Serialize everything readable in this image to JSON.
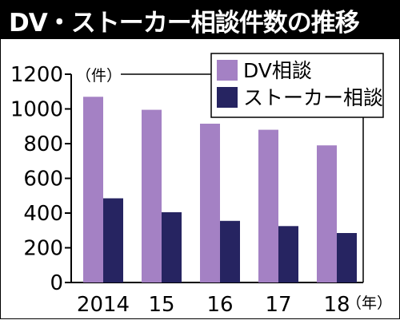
{
  "title": "DV・ストーカー相談件数の推移",
  "chart_data": {
    "type": "bar",
    "title": "DV・ストーカー相談件数の推移",
    "y_unit": "（件）",
    "x_unit": "（年）",
    "categories": [
      "2014",
      "15",
      "16",
      "17",
      "18"
    ],
    "series": [
      {
        "name": "DV相談",
        "color": "#a481c4",
        "values": [
          1070,
          995,
          915,
          880,
          790
        ]
      },
      {
        "name": "ストーカー相談",
        "color": "#262461",
        "values": [
          485,
          405,
          355,
          325,
          285
        ]
      }
    ],
    "ylim": [
      0,
      1200
    ],
    "yticks": [
      0,
      200,
      400,
      600,
      800,
      1000,
      1200
    ],
    "grid": false,
    "legend_position": "top-right"
  }
}
